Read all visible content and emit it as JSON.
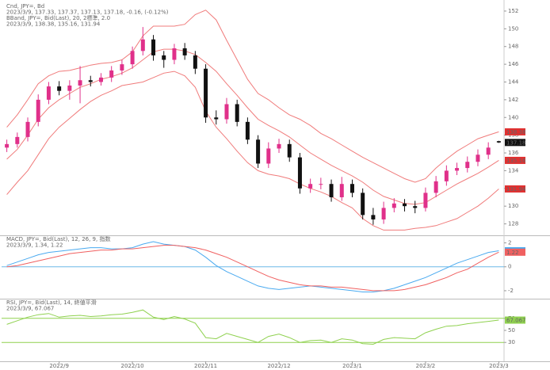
{
  "chart_data": [
    {
      "type": "candlestick",
      "info": [
        "Cnd, JPY=, Bd",
        "2023/3/9, 137.33, 137.37, 137.13, 137.18, -0.16, (-0.12%)",
        "BBand, JPY=, Bid(Last), 20, 2標準, 2.0",
        "2023/3/9, 138.38, 135.16, 131.94"
      ],
      "info_colors": [
        "#333333",
        "#333333",
        "#e03030",
        "#e03030"
      ],
      "categories": [
        null,
        null,
        null,
        null,
        null,
        "2022/9",
        null,
        null,
        null,
        null,
        null,
        null,
        "2022/10",
        null,
        null,
        null,
        null,
        null,
        null,
        "2022/11",
        null,
        null,
        null,
        null,
        null,
        null,
        "2022/12",
        null,
        null,
        null,
        null,
        null,
        null,
        "2023/1",
        null,
        null,
        null,
        null,
        null,
        null,
        "2023/2",
        null,
        null,
        null,
        null,
        null,
        null,
        "2023/3"
      ],
      "open": [
        136.6,
        137.0,
        137.8,
        139.5,
        142.0,
        143.5,
        143.0,
        143.6,
        144.2,
        144.0,
        144.5,
        145.3,
        146.0,
        147.5,
        148.8,
        147.0,
        146.5,
        147.8,
        147.0,
        145.5,
        140.0,
        139.8,
        141.5,
        139.5,
        137.5,
        134.8,
        136.5,
        137.0,
        135.5,
        132.0,
        132.5,
        132.5,
        131.0,
        132.5,
        131.5,
        129.0,
        128.5,
        129.8,
        130.3,
        130.0,
        129.8,
        131.5,
        132.8,
        134.0,
        134.3,
        135.0,
        135.8,
        137.33
      ],
      "high": [
        137.5,
        138.3,
        140.0,
        142.6,
        144.0,
        144.1,
        144.2,
        145.8,
        144.7,
        145.0,
        145.8,
        146.5,
        148.0,
        150.2,
        149.3,
        147.5,
        148.3,
        148.4,
        147.5,
        146.0,
        140.8,
        142.2,
        142.0,
        140.0,
        138.0,
        137.2,
        137.6,
        137.5,
        136.0,
        133.1,
        133.2,
        133.0,
        133.3,
        133.0,
        132.0,
        129.8,
        130.5,
        130.9,
        130.8,
        130.6,
        132.1,
        133.4,
        134.6,
        134.9,
        135.6,
        136.4,
        137.2,
        137.37
      ],
      "low": [
        136.1,
        136.6,
        137.3,
        139.0,
        141.5,
        142.5,
        142.0,
        141.6,
        143.5,
        143.6,
        144.0,
        144.8,
        145.5,
        147.0,
        146.4,
        145.6,
        146.0,
        146.5,
        144.9,
        139.4,
        139.2,
        139.3,
        139.0,
        137.0,
        134.3,
        134.3,
        136.0,
        135.0,
        131.4,
        131.5,
        131.9,
        130.5,
        130.6,
        131.0,
        128.5,
        127.9,
        128.0,
        129.3,
        129.4,
        129.2,
        129.4,
        131.0,
        132.3,
        133.5,
        133.8,
        134.5,
        135.3,
        137.13
      ],
      "close": [
        137.0,
        137.8,
        139.5,
        142.0,
        143.5,
        143.0,
        143.6,
        144.2,
        144.0,
        144.5,
        145.3,
        146.0,
        147.5,
        148.8,
        147.0,
        146.5,
        147.8,
        147.0,
        145.5,
        140.0,
        139.8,
        141.5,
        139.5,
        137.5,
        134.8,
        136.5,
        137.0,
        135.5,
        132.0,
        132.5,
        132.5,
        131.0,
        132.5,
        131.5,
        129.0,
        128.5,
        129.8,
        130.3,
        130.0,
        129.8,
        131.5,
        132.8,
        134.0,
        134.3,
        135.0,
        135.8,
        136.6,
        137.18
      ],
      "up_color": "#e0308a",
      "down_color": "#111111",
      "close_tag_color": "#111111",
      "overlays": [
        {
          "color": "#f07b7b",
          "values": [
            138.9,
            140.3,
            142.0,
            143.8,
            144.7,
            145.2,
            145.3,
            145.6,
            145.9,
            146.1,
            146.2,
            146.5,
            147.4,
            149.2,
            150.3,
            150.3,
            150.3,
            150.5,
            151.6,
            152.1,
            151.0,
            148.7,
            146.5,
            144.3,
            142.7,
            142.0,
            141.1,
            140.3,
            139.8,
            139.1,
            138.2,
            137.6,
            136.9,
            136.2,
            135.5,
            134.9,
            134.3,
            133.7,
            133.1,
            132.7,
            133.1,
            134.3,
            135.3,
            136.2,
            136.9,
            137.6,
            138.0,
            138.38
          ]
        },
        {
          "color": "#f07b7b",
          "values": [
            135.3,
            136.4,
            138.0,
            139.8,
            141.1,
            142.0,
            142.7,
            143.4,
            143.8,
            144.3,
            144.6,
            145.0,
            145.6,
            146.5,
            147.4,
            147.7,
            147.7,
            147.5,
            147.1,
            146.2,
            145.2,
            143.8,
            142.5,
            141.1,
            139.8,
            139.1,
            138.5,
            137.8,
            136.9,
            136.0,
            135.3,
            134.6,
            134.0,
            133.4,
            132.7,
            131.8,
            131.1,
            130.7,
            130.3,
            130.2,
            130.4,
            131.1,
            131.8,
            132.5,
            133.1,
            133.7,
            134.4,
            135.16
          ]
        },
        {
          "color": "#f07b7b",
          "values": [
            131.3,
            132.7,
            134.0,
            135.8,
            137.6,
            138.9,
            139.9,
            140.9,
            141.8,
            142.5,
            143.0,
            143.6,
            143.8,
            144.0,
            144.5,
            145.0,
            145.2,
            144.7,
            143.4,
            140.7,
            138.9,
            137.6,
            136.2,
            134.9,
            134.0,
            133.6,
            133.4,
            133.1,
            132.5,
            132.0,
            131.6,
            131.1,
            130.4,
            129.8,
            128.6,
            127.8,
            127.3,
            127.3,
            127.3,
            127.5,
            127.6,
            127.8,
            128.2,
            128.6,
            129.3,
            130.0,
            130.9,
            131.94
          ]
        }
      ],
      "overlay_tag_color": "#e03030",
      "ylim": [
        126.8,
        152.8
      ],
      "yticks": [
        128,
        130,
        132,
        134,
        136,
        138,
        140,
        142,
        144,
        146,
        148,
        150,
        152
      ]
    },
    {
      "type": "line",
      "info": [
        "MACD, JPY=, Bid(Last), 12, 26, 9, 指数",
        "2023/3/9, 1.34, 1.22"
      ],
      "info_colors": [
        "#3a8fd8",
        "#3a8fd8"
      ],
      "series": [
        {
          "color": "#4aaaf0",
          "values": [
            0.1,
            0.4,
            0.7,
            1.0,
            1.2,
            1.3,
            1.4,
            1.5,
            1.6,
            1.6,
            1.5,
            1.5,
            1.6,
            1.9,
            2.1,
            1.9,
            1.8,
            1.7,
            1.4,
            0.8,
            0.1,
            -0.4,
            -0.8,
            -1.2,
            -1.6,
            -1.8,
            -1.9,
            -1.8,
            -1.7,
            -1.6,
            -1.7,
            -1.8,
            -1.9,
            -2.0,
            -2.1,
            -2.1,
            -2.0,
            -1.8,
            -1.5,
            -1.2,
            -0.9,
            -0.5,
            -0.1,
            0.3,
            0.6,
            0.9,
            1.2,
            1.34
          ]
        },
        {
          "color": "#f06060",
          "values": [
            0.0,
            0.1,
            0.3,
            0.5,
            0.7,
            0.9,
            1.1,
            1.2,
            1.3,
            1.4,
            1.4,
            1.5,
            1.5,
            1.6,
            1.7,
            1.8,
            1.8,
            1.7,
            1.6,
            1.4,
            1.1,
            0.8,
            0.4,
            0.0,
            -0.4,
            -0.8,
            -1.1,
            -1.3,
            -1.5,
            -1.6,
            -1.6,
            -1.7,
            -1.7,
            -1.8,
            -1.9,
            -2.0,
            -2.0,
            -2.0,
            -1.9,
            -1.7,
            -1.5,
            -1.2,
            -0.9,
            -0.5,
            -0.2,
            0.3,
            0.8,
            1.22
          ]
        }
      ],
      "reference_lines": [
        {
          "value": 0,
          "color": "#6cb8e8"
        }
      ],
      "ylim": [
        -2.6,
        2.5
      ],
      "yticks": [
        -2,
        0,
        2
      ]
    },
    {
      "type": "line",
      "info": [
        "RSI, JPY=, Bid(Last), 14, 終値平滑",
        "2023/3/9, 67.067"
      ],
      "info_colors": [
        "#5aa82a",
        "#5aa82a"
      ],
      "series": [
        {
          "color": "#8fd14f",
          "values": [
            60,
            66,
            72,
            76,
            78,
            72,
            74,
            75,
            73,
            74,
            76,
            77,
            80,
            84,
            72,
            68,
            73,
            69,
            62,
            38,
            36,
            45,
            40,
            35,
            30,
            40,
            44,
            38,
            30,
            33,
            34,
            30,
            36,
            34,
            28,
            27,
            35,
            38,
            37,
            36,
            46,
            52,
            57,
            58,
            61,
            63,
            65,
            67.067
          ]
        }
      ],
      "reference_lines": [
        {
          "value": 70,
          "color": "#8fd14f"
        },
        {
          "value": 30,
          "color": "#8fd14f"
        }
      ],
      "ylim": [
        0,
        100
      ],
      "yticks": [
        30,
        50,
        70
      ]
    }
  ]
}
